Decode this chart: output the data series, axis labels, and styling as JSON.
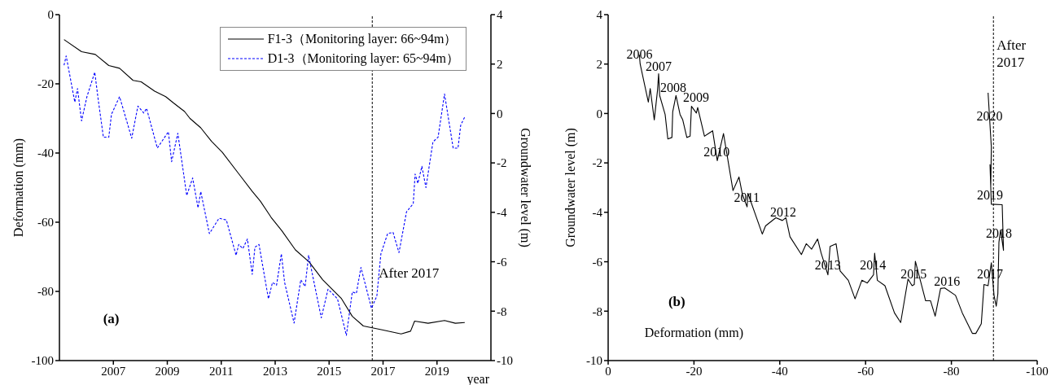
{
  "chart_data": [
    {
      "type": "line",
      "xlabel": "year",
      "ylabel": "Deformation (mm)",
      "y2label": "Groundwater level (m)",
      "xlim": [
        2005,
        2021
      ],
      "xticks": [
        2007,
        2009,
        2011,
        2013,
        2015,
        2017,
        2019
      ],
      "ylim": [
        -100,
        0
      ],
      "yticks": [
        -100,
        -80,
        -60,
        -40,
        -20,
        0
      ],
      "y2lim": [
        -10,
        4
      ],
      "y2ticks": [
        -10,
        -8,
        -6,
        -4,
        -2,
        0,
        2,
        4
      ],
      "legend": "top right",
      "annotations": [
        "(a)"
      ],
      "ref_lines": [
        {
          "axis": "x",
          "value": 2016.6,
          "label": "After 2017",
          "line_style": "dashed",
          "color": "#000000"
        }
      ],
      "series": [
        {
          "name": "F1-3（Monitoring layer: 66~94m）",
          "color": "#000000",
          "line_style": "solid",
          "x": [
            2005.17,
            2005.82,
            2006.33,
            2006.83,
            2007.23,
            2007.73,
            2008.03,
            2008.53,
            2008.94,
            2009.24,
            2009.64,
            2009.84,
            2010.24,
            2010.64,
            2011.04,
            2011.65,
            2012.15,
            2012.45,
            2012.85,
            2013.25,
            2013.75,
            2014.26,
            2014.76,
            2015.46,
            2015.86,
            2016.27,
            2016.97,
            2017.67,
            2018.02,
            2018.17,
            2018.67,
            2019.28,
            2019.68,
            2020.03
          ],
          "values": [
            -7.2,
            -10.7,
            -11.5,
            -14.7,
            -15.5,
            -19.0,
            -19.4,
            -22.1,
            -23.7,
            -25.6,
            -28.0,
            -30.0,
            -32.7,
            -36.6,
            -39.8,
            -46.0,
            -51.1,
            -53.9,
            -58.6,
            -62.5,
            -68.0,
            -71.5,
            -76.6,
            -82.1,
            -87.2,
            -90.0,
            -91.1,
            -92.3,
            -91.5,
            -88.6,
            -89.2,
            -88.4,
            -89.2,
            -89.0
          ]
        },
        {
          "name": "D1-3（Monitoring layer: 65~94m）",
          "color": "#0000ff",
          "line_style": "dashed",
          "axis": "y2",
          "x": [
            2005.17,
            2005.25,
            2005.57,
            2005.67,
            2005.82,
            2006.02,
            2006.31,
            2006.43,
            2006.63,
            2006.83,
            2006.93,
            2007.23,
            2007.48,
            2007.68,
            2007.91,
            2008.13,
            2008.23,
            2008.63,
            2009.04,
            2009.16,
            2009.39,
            2009.72,
            2009.94,
            2010.14,
            2010.24,
            2010.56,
            2010.92,
            2011.19,
            2011.55,
            2011.65,
            2011.8,
            2011.97,
            2012.15,
            2012.25,
            2012.4,
            2012.75,
            2012.9,
            2013.05,
            2013.23,
            2013.35,
            2013.7,
            2013.95,
            2014.11,
            2014.24,
            2014.36,
            2014.71,
            2014.96,
            2015.31,
            2015.64,
            2015.86,
            2016.01,
            2016.18,
            2016.57,
            2016.77,
            2016.92,
            2017.17,
            2017.37,
            2017.59,
            2017.87,
            2018.12,
            2018.19,
            2018.29,
            2018.44,
            2018.59,
            2018.85,
            2019.04,
            2019.28,
            2019.6,
            2019.78,
            2019.88,
            2020.03
          ],
          "values": [
            1.95,
            2.33,
            0.46,
            1.01,
            -0.3,
            0.68,
            1.67,
            0.63,
            -0.96,
            -0.96,
            -0.03,
            0.68,
            -0.25,
            -1.0,
            0.3,
            0.02,
            0.21,
            -1.4,
            -0.74,
            -1.95,
            -0.8,
            -3.32,
            -2.61,
            -3.82,
            -3.16,
            -4.86,
            -4.24,
            -4.31,
            -5.74,
            -5.3,
            -5.47,
            -5.08,
            -6.51,
            -5.41,
            -5.3,
            -7.5,
            -6.84,
            -6.95,
            -5.68,
            -6.84,
            -8.48,
            -6.73,
            -7.0,
            -5.74,
            -6.4,
            -8.27,
            -7.11,
            -7.5,
            -8.98,
            -7.22,
            -7.28,
            -6.23,
            -7.88,
            -7.39,
            -5.68,
            -4.86,
            -4.81,
            -5.63,
            -3.98,
            -3.65,
            -2.45,
            -2.83,
            -2.14,
            -3.0,
            -1.15,
            -0.96,
            0.79,
            -1.4,
            -1.4,
            -0.47,
            -0.14
          ]
        }
      ]
    },
    {
      "type": "line",
      "xlabel": "Deformation (mm)",
      "ylabel": "Groundwater level (m)",
      "xlim": [
        0,
        -100
      ],
      "xticks": [
        0,
        -20,
        -40,
        -60,
        -80,
        -100
      ],
      "ylim": [
        -10,
        4
      ],
      "yticks": [
        -10,
        -8,
        -6,
        -4,
        -2,
        0,
        2,
        4
      ],
      "annotations": [
        "(b)",
        {
          "text": "2006",
          "x": -7.3,
          "y": 2.1
        },
        {
          "text": "2007",
          "x": -11.76,
          "y": 1.61
        },
        {
          "text": "2008",
          "x": -15.2,
          "y": 0.75
        },
        {
          "text": "2009",
          "x": -20.5,
          "y": 0.35
        },
        {
          "text": "2010",
          "x": -25.3,
          "y": -1.85
        },
        {
          "text": "2011",
          "x": -32.3,
          "y": -3.7
        },
        {
          "text": "2012",
          "x": -40.8,
          "y": -4.3
        },
        {
          "text": "2013",
          "x": -51.2,
          "y": -6.45
        },
        {
          "text": "2014",
          "x": -61.7,
          "y": -6.45
        },
        {
          "text": "2015",
          "x": -71.2,
          "y": -6.8
        },
        {
          "text": "2016",
          "x": -79.0,
          "y": -7.1
        },
        {
          "text": "2017",
          "x": -89.0,
          "y": -6.8
        },
        {
          "text": "2018",
          "x": -91.1,
          "y": -5.15
        },
        {
          "text": "2019",
          "x": -89.0,
          "y": -3.6
        },
        {
          "text": "2020",
          "x": -88.9,
          "y": -0.4
        }
      ],
      "ref_lines": [
        {
          "axis": "x",
          "value": -89.8,
          "label": "After 2017",
          "line_style": "dashed",
          "color": "#000000"
        }
      ],
      "series": [
        {
          "color": "#000000",
          "x": [
            -7.27,
            -7.46,
            -9.36,
            -9.8,
            -10.75,
            -11.51,
            -11.76,
            -12.0,
            -13.28,
            -13.91,
            -14.86,
            -15.05,
            -15.81,
            -16.76,
            -17.39,
            -18.34,
            -19.1,
            -19.42,
            -20.56,
            -20.87,
            -22.45,
            -23.4,
            -24.35,
            -25.43,
            -26.88,
            -29.1,
            -30.49,
            -31.31,
            -32.38,
            -32.57,
            -35.93,
            -36.69,
            -39.09,
            -40.61,
            -41.43,
            -42.38,
            -45.04,
            -46.17,
            -47.43,
            -48.82,
            -49.64,
            -51.22,
            -51.73,
            -53.12,
            -54.07,
            -55.97,
            -57.55,
            -59.13,
            -60.4,
            -61.85,
            -62.11,
            -62.74,
            -64.51,
            -66.73,
            -68.18,
            -69.89,
            -70.84,
            -71.35,
            -71.6,
            -74.0,
            -75.14,
            -76.22,
            -77.48,
            -78.43,
            -80.96,
            -82.54,
            -84.88,
            -85.7,
            -86.97,
            -87.6,
            -88.55,
            -89.31,
            -89.94,
            -90.45,
            -90.83,
            -91.08,
            -91.46,
            -92.15,
            -91.84,
            -89.31,
            -89.0,
            -89.18,
            -89.31,
            -88.55
          ],
          "values": [
            2.38,
            2.0,
            0.46,
            1.01,
            -0.26,
            0.95,
            1.61,
            0.73,
            -0.04,
            -1.03,
            -0.97,
            0.07,
            0.73,
            -0.04,
            -0.26,
            -0.97,
            -0.92,
            0.29,
            0.02,
            0.24,
            -0.92,
            -0.81,
            -0.7,
            -1.91,
            -0.81,
            -3.12,
            -2.57,
            -3.29,
            -3.78,
            -3.23,
            -4.88,
            -4.55,
            -4.22,
            -4.33,
            -4.22,
            -4.99,
            -5.71,
            -5.27,
            -5.49,
            -5.08,
            -5.65,
            -6.53,
            -5.38,
            -5.27,
            -6.37,
            -6.75,
            -7.5,
            -6.75,
            -6.86,
            -6.53,
            -5.65,
            -6.75,
            -6.97,
            -8.07,
            -8.46,
            -6.7,
            -6.97,
            -6.92,
            -5.98,
            -7.58,
            -7.58,
            -8.2,
            -7.08,
            -7.06,
            -7.36,
            -8.07,
            -8.9,
            -8.9,
            -8.51,
            -6.92,
            -6.97,
            -6.04,
            -7.36,
            -7.8,
            -7.3,
            -5.21,
            -4.72,
            -5.54,
            -3.69,
            -3.67,
            -2.07,
            -2.9,
            -1.36,
            0.84
          ]
        }
      ]
    }
  ]
}
